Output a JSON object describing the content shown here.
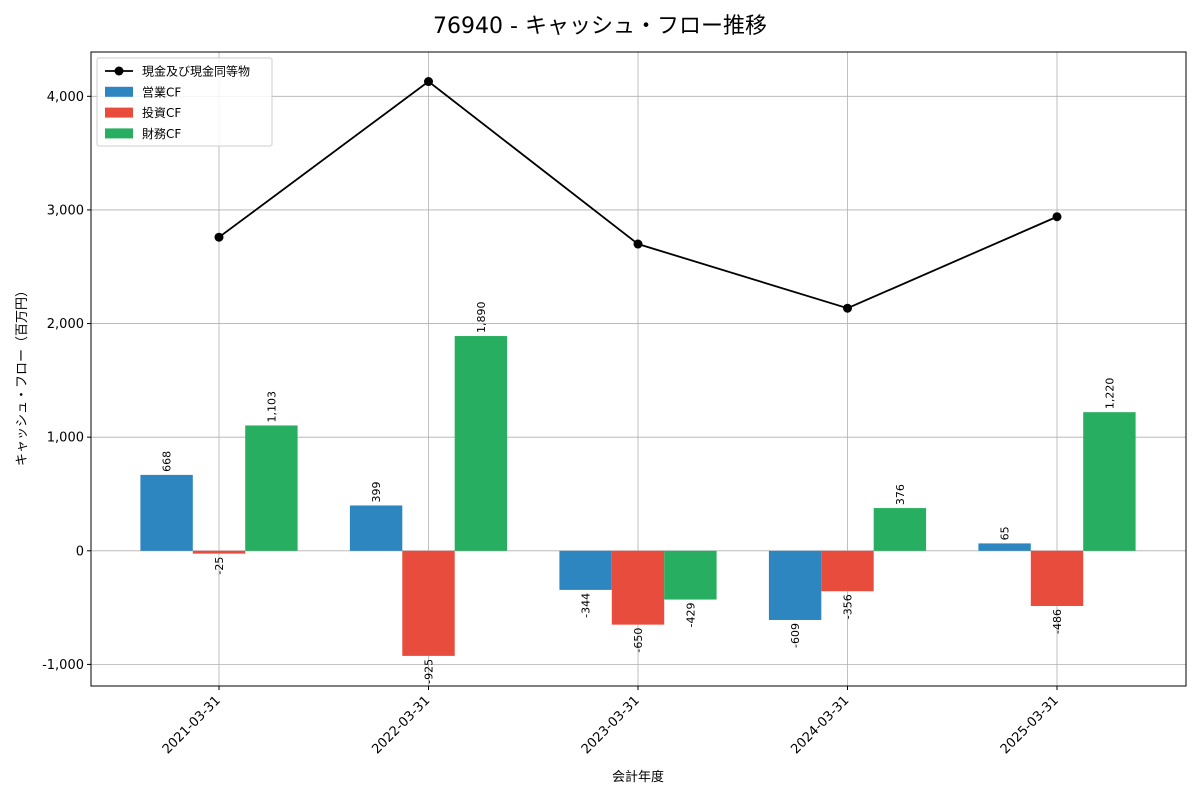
{
  "chart_data": {
    "type": "bar",
    "title": "76940 - キャッシュ・フロー推移",
    "xlabel": "会計年度",
    "ylabel": "キャッシュ・フロー（百万円）",
    "categories": [
      "2021-03-31",
      "2022-03-31",
      "2023-03-31",
      "2024-03-31",
      "2025-03-31"
    ],
    "ylim": [
      -1190,
      4390
    ],
    "yticks": [
      -1000,
      0,
      1000,
      2000,
      3000,
      4000
    ],
    "ytick_labels": [
      "-1,000",
      "0",
      "1,000",
      "2,000",
      "3,000",
      "4,000"
    ],
    "grid": true,
    "legend_position": "top-left",
    "series": [
      {
        "name": "営業CF",
        "kind": "bar",
        "color": "#2e86c1",
        "values": [
          668,
          399,
          -344,
          -609,
          65
        ],
        "labels": [
          "668",
          "399",
          "-344",
          "-609",
          "65"
        ]
      },
      {
        "name": "投資CF",
        "kind": "bar",
        "color": "#e74c3c",
        "values": [
          -25,
          -925,
          -650,
          -356,
          -486
        ],
        "labels": [
          "-25",
          "-925",
          "-650",
          "-356",
          "-486"
        ]
      },
      {
        "name": "財務CF",
        "kind": "bar",
        "color": "#27ae60",
        "values": [
          1103,
          1890,
          -429,
          376,
          1220
        ],
        "labels": [
          "1,103",
          "1,890",
          "-429",
          "376",
          "1,220"
        ]
      },
      {
        "name": "現金及び現金同等物",
        "kind": "line",
        "color": "#000000",
        "values": [
          2760,
          4130,
          2700,
          2135,
          2940
        ]
      }
    ]
  }
}
